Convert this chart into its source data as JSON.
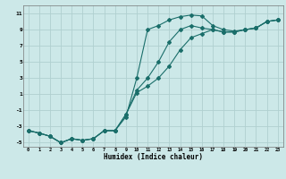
{
  "xlabel": "Humidex (Indice chaleur)",
  "background_color": "#cce8e8",
  "grid_color": "#b0d0d0",
  "line_color": "#1a6e6a",
  "xlim": [
    -0.5,
    23.5
  ],
  "ylim": [
    -5.5,
    12.0
  ],
  "xticks": [
    0,
    1,
    2,
    3,
    4,
    5,
    6,
    7,
    8,
    9,
    10,
    11,
    12,
    13,
    14,
    15,
    16,
    17,
    18,
    19,
    20,
    21,
    22,
    23
  ],
  "yticks": [
    -5,
    -3,
    -1,
    1,
    3,
    5,
    7,
    9,
    11
  ],
  "line1_x": [
    0,
    1,
    2,
    3,
    4,
    5,
    6,
    7,
    8,
    9,
    10,
    11,
    12,
    13,
    14,
    15,
    16,
    17,
    18,
    19,
    20,
    21,
    22,
    23
  ],
  "line1_y": [
    -3.5,
    -3.8,
    -4.2,
    -5.0,
    -4.5,
    -4.7,
    -4.5,
    -3.5,
    -3.5,
    -1.8,
    3.0,
    9.0,
    9.5,
    10.2,
    10.6,
    10.8,
    10.7,
    9.5,
    9.0,
    8.8,
    9.0,
    9.2,
    10.0,
    10.2
  ],
  "line2_x": [
    0,
    1,
    2,
    3,
    4,
    5,
    6,
    7,
    8,
    9,
    10,
    11,
    12,
    13,
    14,
    15,
    16,
    17,
    18,
    19,
    20,
    21,
    22,
    23
  ],
  "line2_y": [
    -3.5,
    -3.8,
    -4.2,
    -5.0,
    -4.5,
    -4.7,
    -4.5,
    -3.5,
    -3.5,
    -1.5,
    1.5,
    3.0,
    5.0,
    7.5,
    9.0,
    9.5,
    9.2,
    9.0,
    8.7,
    8.7,
    9.0,
    9.2,
    10.0,
    10.2
  ],
  "line3_x": [
    0,
    1,
    2,
    3,
    4,
    5,
    6,
    7,
    8,
    9,
    10,
    11,
    12,
    13,
    14,
    15,
    16,
    17,
    18,
    19,
    20,
    21,
    22,
    23
  ],
  "line3_y": [
    -3.5,
    -3.8,
    -4.2,
    -5.0,
    -4.5,
    -4.7,
    -4.5,
    -3.5,
    -3.5,
    -1.5,
    1.2,
    2.0,
    3.0,
    4.5,
    6.5,
    8.0,
    8.5,
    9.0,
    8.7,
    8.7,
    9.0,
    9.2,
    10.0,
    10.2
  ]
}
